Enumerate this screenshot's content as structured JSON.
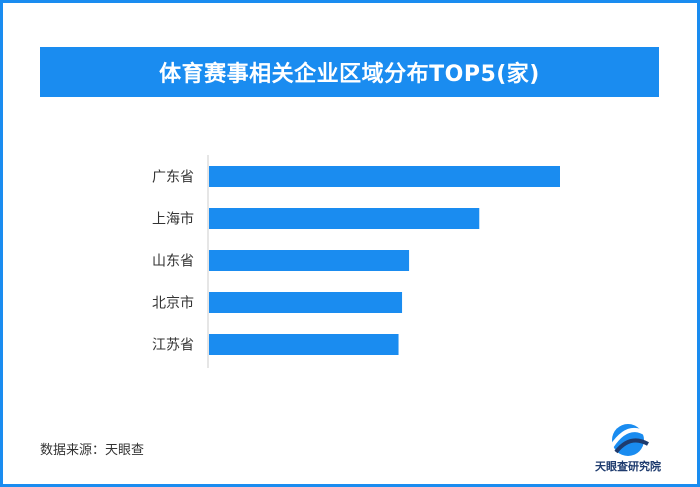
{
  "title": "体育赛事相关企业区域分布TOP5(家)",
  "source": {
    "label": "数据来源：",
    "value": "天眼查"
  },
  "logo": {
    "text": "天眼查研究院"
  },
  "colors": {
    "accent": "#1a8cf0",
    "bar": "#1a8cf0",
    "axis": "#cccccc",
    "label": "#333333"
  },
  "chart_data": {
    "type": "bar",
    "orientation": "horizontal",
    "categories": [
      "广东省",
      "上海市",
      "山东省",
      "北京市",
      "江苏省"
    ],
    "values": [
      100,
      77,
      57,
      55,
      54
    ],
    "title": "体育赛事相关企业区域分布TOP5(家)",
    "xlabel": "",
    "ylabel": "",
    "grid": false,
    "legend": "none",
    "value_labels_shown": false
  }
}
